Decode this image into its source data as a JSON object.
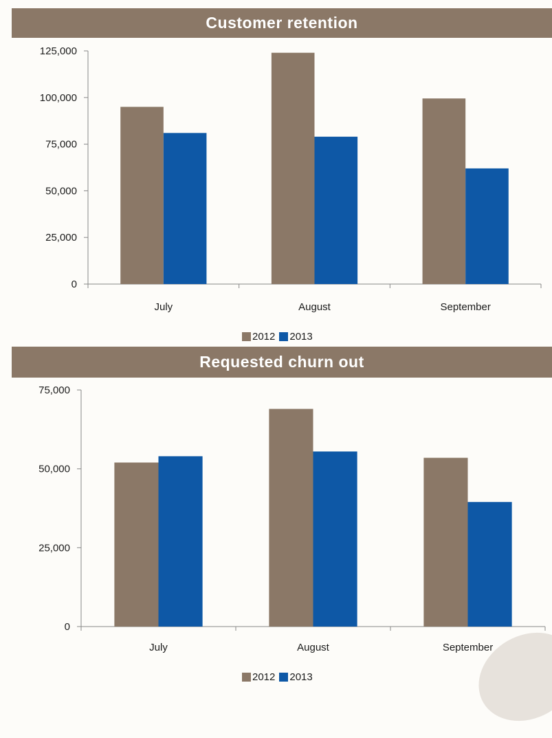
{
  "colors": {
    "banner": "#8b7867",
    "series2012": "#8b7867",
    "series2013": "#0e58a6",
    "axis": "#888888"
  },
  "chart_data": [
    {
      "type": "bar",
      "title": "Customer retention",
      "categories": [
        "July",
        "August",
        "September"
      ],
      "series": [
        {
          "name": "2012",
          "values": [
            95000,
            124000,
            99500
          ]
        },
        {
          "name": "2013",
          "values": [
            81000,
            79000,
            62000
          ]
        }
      ],
      "ylim": [
        0,
        125000
      ],
      "yticks": [
        0,
        25000,
        50000,
        75000,
        100000,
        125000
      ],
      "ytick_labels": [
        "0",
        "25,000",
        "50,000",
        "75,000",
        "100,000",
        "125,000"
      ],
      "legend_position": "bottom",
      "grid": false
    },
    {
      "type": "bar",
      "title": "Requested churn out",
      "categories": [
        "July",
        "August",
        "September"
      ],
      "series": [
        {
          "name": "2012",
          "values": [
            52000,
            69000,
            53500
          ]
        },
        {
          "name": "2013",
          "values": [
            54000,
            55500,
            39500
          ]
        }
      ],
      "ylim": [
        0,
        75000
      ],
      "yticks": [
        0,
        25000,
        50000,
        75000
      ],
      "ytick_labels": [
        "0",
        "25,000",
        "50,000",
        "75,000"
      ],
      "legend_position": "bottom",
      "grid": false
    }
  ]
}
